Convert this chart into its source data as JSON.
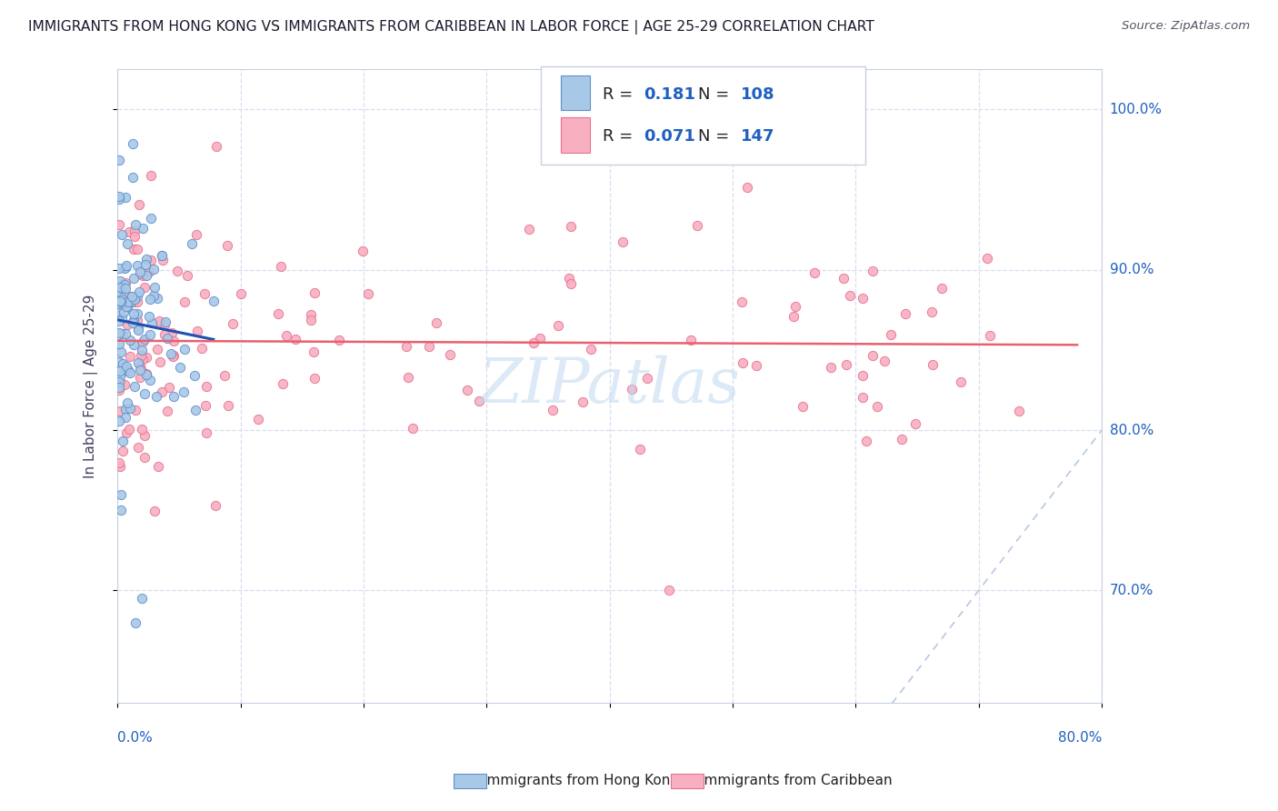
{
  "title": "IMMIGRANTS FROM HONG KONG VS IMMIGRANTS FROM CARIBBEAN IN LABOR FORCE | AGE 25-29 CORRELATION CHART",
  "source": "Source: ZipAtlas.com",
  "ylabel": "In Labor Force | Age 25-29",
  "x_min": 0.0,
  "x_max": 0.8,
  "y_min": 0.63,
  "y_max": 1.025,
  "yticks": [
    0.7,
    0.8,
    0.9,
    1.0
  ],
  "ytick_labels": [
    "70.0%",
    "80.0%",
    "90.0%",
    "100.0%"
  ],
  "hk_R": 0.181,
  "hk_N": 108,
  "carib_R": 0.071,
  "carib_N": 147,
  "hk_color": "#a8c8e8",
  "carib_color": "#f8b0c0",
  "hk_edge_color": "#6090c8",
  "carib_edge_color": "#e87090",
  "hk_trend_color": "#2050b0",
  "carib_trend_color": "#e86070",
  "legend_label_hk": "Immigrants from Hong Kong",
  "legend_label_carib": "Immigrants from Caribbean",
  "watermark": "ZIPatlas",
  "background_color": "#ffffff",
  "grid_color": "#d8dff0",
  "diag_color": "#b8c8e0",
  "title_color": "#1a1a2e",
  "source_color": "#555566",
  "label_color": "#2060c0",
  "axis_label_color": "#404060"
}
